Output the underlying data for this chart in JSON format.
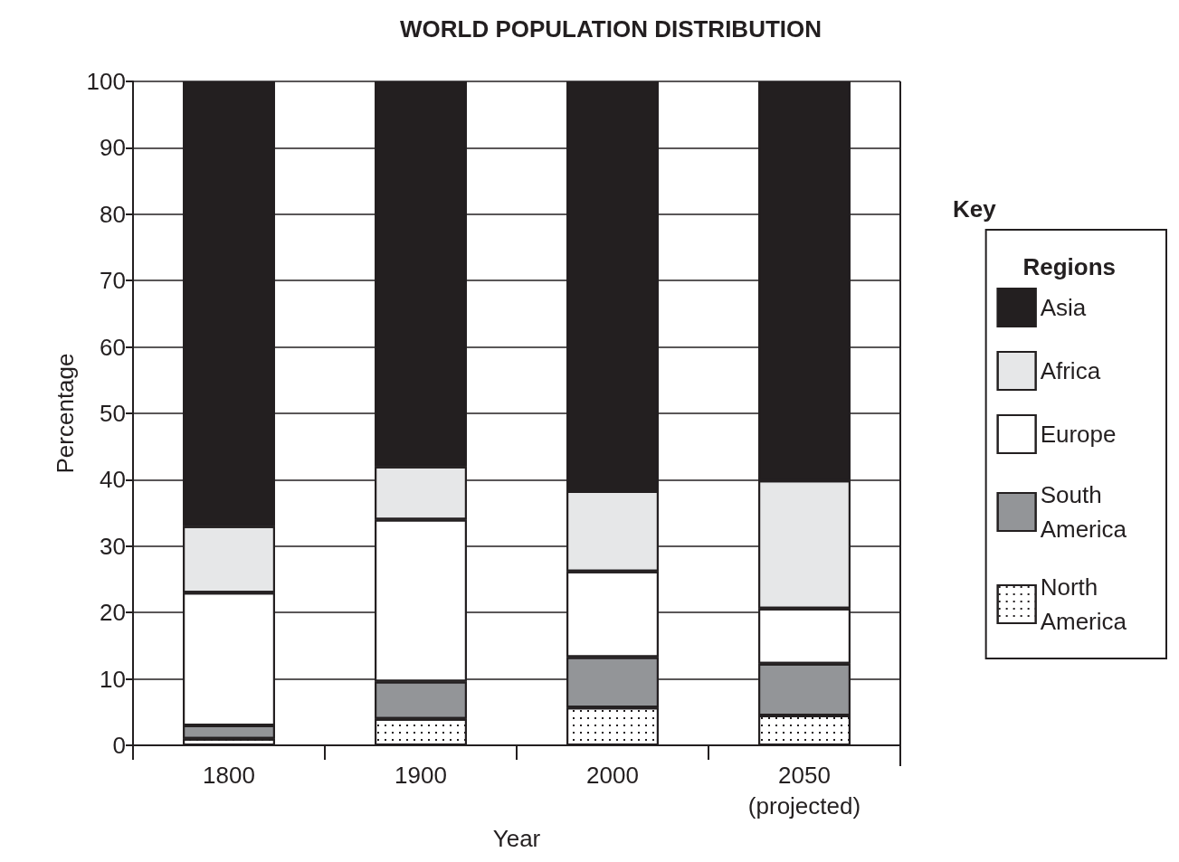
{
  "chart_data": {
    "type": "bar",
    "title": "WORLD POPULATION DISTRIBUTION",
    "xlabel": "Year",
    "ylabel": "Percentage",
    "legend_title": "Regions",
    "annotations": [
      "Key"
    ],
    "categories": [
      "1800",
      "1900",
      "2000",
      "2050\n(projected)"
    ],
    "stacked": true,
    "series": [
      {
        "name": "North America",
        "color": "#ffffff",
        "values": [
          1,
          4,
          5.7,
          4.5
        ]
      },
      {
        "name": "South America",
        "color": "#939598",
        "values": [
          2,
          5.6,
          7.6,
          7.8
        ]
      },
      {
        "name": "Europe",
        "color": "#ffffff",
        "values": [
          20,
          24.4,
          12.9,
          8.3
        ]
      },
      {
        "name": "Africa",
        "color": "#e6e7e8",
        "values": [
          10,
          8,
          12.1,
          19.3
        ]
      },
      {
        "name": "Asia",
        "color": "#231f20",
        "values": [
          67,
          58,
          61.7,
          60.1
        ]
      }
    ],
    "ylim": [
      0,
      100
    ],
    "yticks": [
      0,
      10,
      20,
      30,
      40,
      50,
      60,
      70,
      80,
      90,
      100
    ],
    "grid": "y",
    "legend": "right"
  }
}
